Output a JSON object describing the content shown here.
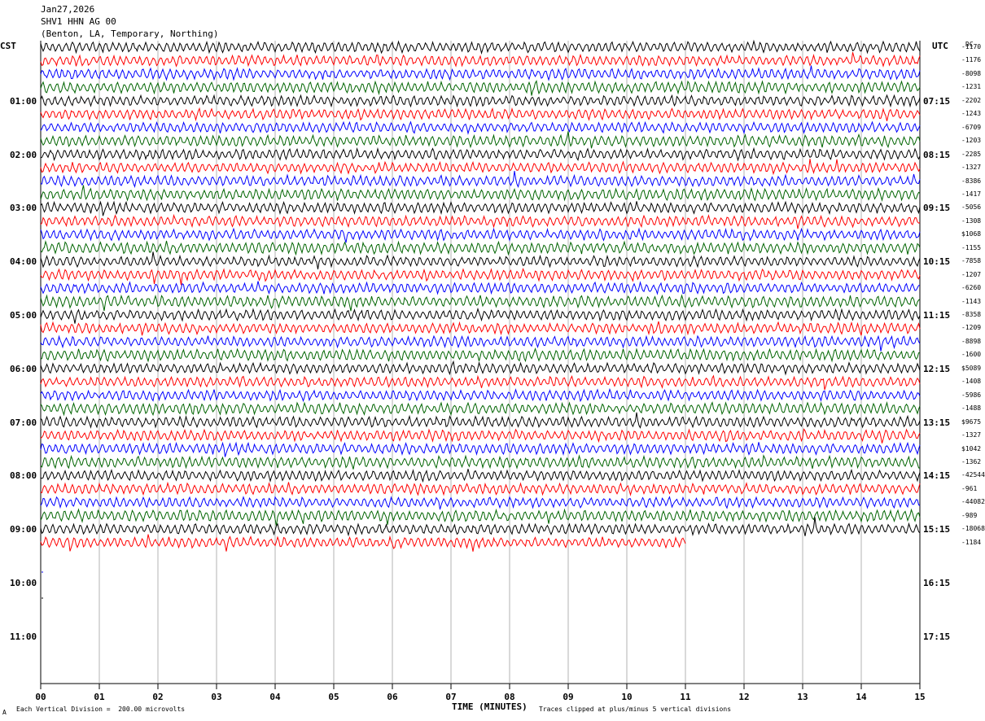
{
  "header": {
    "date": "Jan27,2026",
    "station": "SHV1 HHN AG 00",
    "location": "(Benton, LA, Temporary, Northing)"
  },
  "left_tz": "CST",
  "right_tz": "UTC",
  "dc_label": "DC",
  "footer": {
    "scale": "Each Vertical Division =  200.00 microvolts",
    "clip": "Traces clipped at plus/minus 5 vertical divisions",
    "mark": "A"
  },
  "colors": {
    "cycle": [
      "#000000",
      "#ff0000",
      "#0000ff",
      "#006400"
    ]
  },
  "chart_data": {
    "type": "line",
    "title": "SHV1 HHN AG 00",
    "xlabel": "TIME (MINUTES)",
    "x_ticks": [
      "00",
      "01",
      "02",
      "03",
      "04",
      "05",
      "06",
      "07",
      "08",
      "09",
      "10",
      "11",
      "12",
      "13",
      "14",
      "15"
    ],
    "xlim": [
      0,
      15
    ],
    "minutes_per_row": 15,
    "rows_total": 48,
    "rows_per_hour": 4,
    "rows_recorded": 38,
    "last_row_end_minute": 11,
    "hour_labels_left": [
      "01:00",
      "02:00",
      "03:00",
      "04:00",
      "05:00",
      "06:00",
      "07:00",
      "08:00",
      "09:00",
      "10:00",
      "11:00"
    ],
    "hour_labels_right": [
      "07:15",
      "08:15",
      "09:15",
      "10:15",
      "11:15",
      "12:15",
      "13:15",
      "14:15",
      "15:15",
      "16:15",
      "17:15"
    ],
    "row_dc_offsets": [
      "-1170",
      "-1176",
      "-8098",
      "-1231",
      "-2202",
      "-1243",
      "-6709",
      "-1203",
      "-2285",
      "-1327",
      "-8386",
      "-1417",
      "-5056",
      "-1308",
      "$1068",
      "-1155",
      "-7858",
      "-1207",
      "-6260",
      "-1143",
      "-8358",
      "-1209",
      "-8898",
      "-1600",
      "$5089",
      "-1408",
      "-5986",
      "-1488",
      "$9675",
      "-1327",
      "$1042",
      "-1362",
      "-42544",
      "-961",
      "-44082",
      "-989",
      "-18068",
      "-1184"
    ],
    "row_colors": [
      "black",
      "red",
      "blue",
      "green"
    ]
  }
}
